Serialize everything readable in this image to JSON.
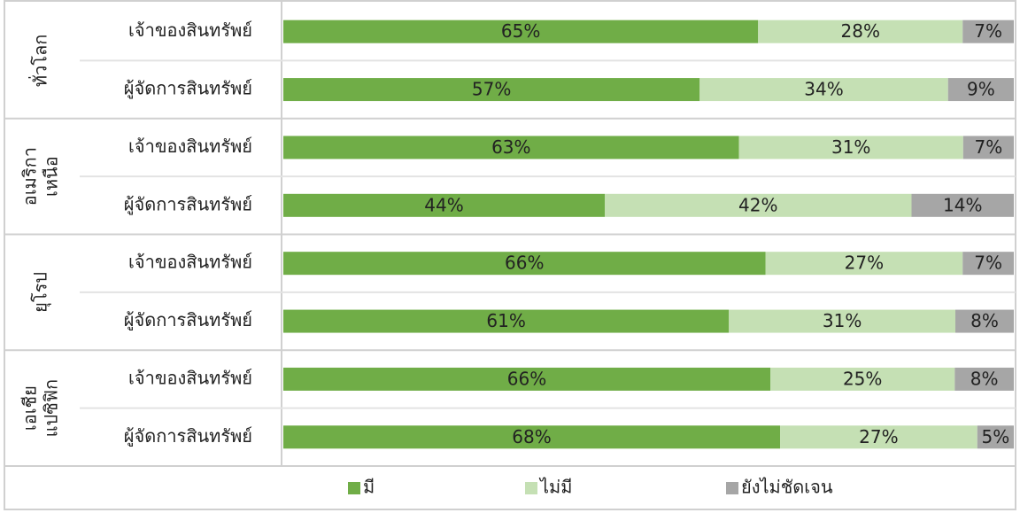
{
  "chart_data": {
    "type": "bar",
    "stacking": "percent",
    "groups": [
      [
        "ทั่วโลก"
      ],
      [
        "อเมริกา",
        "เหนือ"
      ],
      [
        "ยุโรป"
      ],
      [
        "เอเชีย",
        "แปซิฟิก"
      ]
    ],
    "categories": [
      "เจ้าของสินทรัพย์",
      "ผู้จัดการสินทรัพย์",
      "เจ้าของสินทรัพย์",
      "ผู้จัดการสินทรัพย์",
      "เจ้าของสินทรัพย์",
      "ผู้จัดการสินทรัพย์",
      "เจ้าของสินทรัพย์",
      "ผู้จัดการสินทรัพย์"
    ],
    "series": [
      {
        "name": "มี",
        "color": "#70ad47",
        "values": [
          65,
          57,
          63,
          44,
          66,
          61,
          66,
          68
        ],
        "value_labels": [
          "65%",
          "57%",
          "63%",
          "44%",
          "66%",
          "61%",
          "66%",
          "68%"
        ]
      },
      {
        "name": "ไม่มี",
        "color": "#c5e0b4",
        "values": [
          28,
          34,
          31,
          42,
          27,
          31,
          25,
          27
        ],
        "value_labels": [
          "28%",
          "34%",
          "31%",
          "42%",
          "27%",
          "31%",
          "25%",
          "27%"
        ]
      },
      {
        "name": "ยังไม่ชัดเจน",
        "color": "#a6a6a6",
        "values": [
          7,
          9,
          7,
          14,
          7,
          8,
          8,
          5
        ],
        "value_labels": [
          "7%",
          "9%",
          "7%",
          "14%",
          "7%",
          "8%",
          "8%",
          "5%"
        ]
      }
    ],
    "legend": "bottom"
  }
}
